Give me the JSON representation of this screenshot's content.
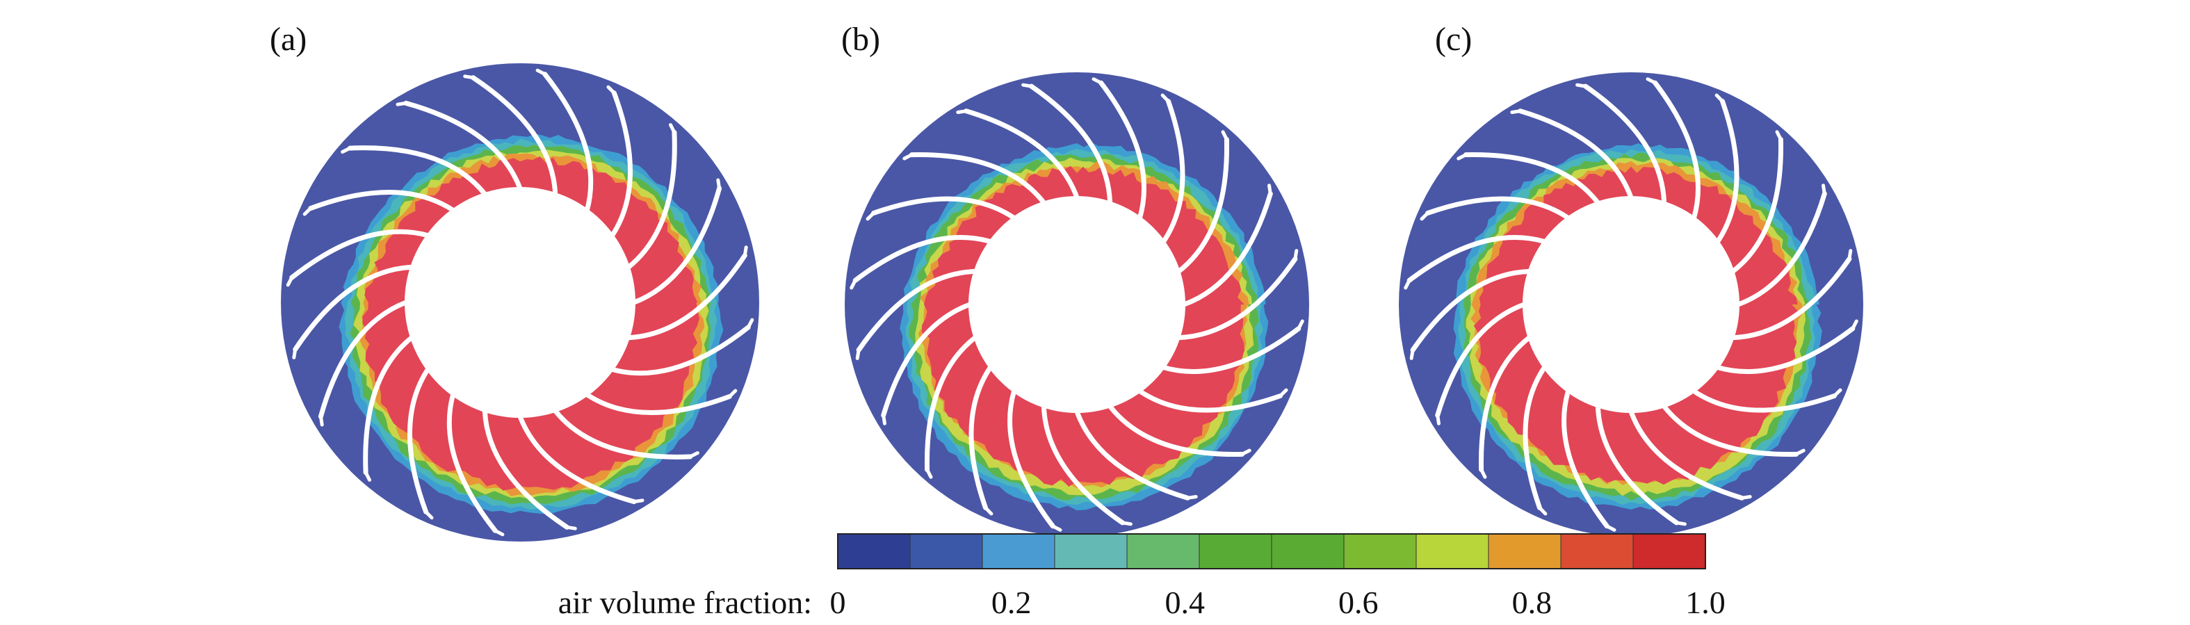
{
  "panels": [
    {
      "label": "(a)",
      "redTiltDeg": 10,
      "orangeExtent": 1.0
    },
    {
      "label": "(b)",
      "redTiltDeg": 0,
      "orangeExtent": 0.55
    },
    {
      "label": "(c)",
      "redTiltDeg": -4,
      "orangeExtent": 0.35
    }
  ],
  "blade_count": 20,
  "colorbar": {
    "label": "air volume fraction:",
    "ticks": [
      "0",
      "0.2",
      "0.4",
      "0.6",
      "0.8",
      "1.0"
    ],
    "colors": [
      "#2e3f93",
      "#3b58a8",
      "#4a9bd2",
      "#64b9b5",
      "#67b96b",
      "#58ac36",
      "#5aab33",
      "#7cba31",
      "#b8d53a",
      "#e39a2d",
      "#dc4c33",
      "#cf2a2c"
    ]
  },
  "colors": {
    "background_fluid": "#4a57a6",
    "hub": "#ffffff",
    "blade": "#ffffff",
    "air_core": "#e24556",
    "orange": "#e9953a",
    "yellow": "#c9d64a",
    "green": "#5cb54c",
    "cyan": "#4bb5bc",
    "light_blue": "#3e9ed2"
  }
}
